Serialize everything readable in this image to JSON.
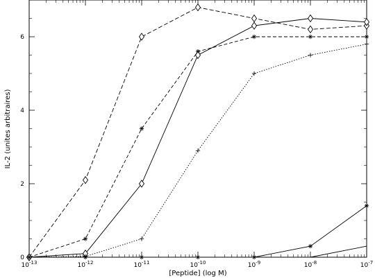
{
  "chart_data": {
    "type": "line",
    "title": "",
    "xlabel": "[Peptide] (log M)",
    "ylabel": "IL-2 (unites arbitraires)",
    "xscale": "log",
    "xlim": [
      1e-13,
      1e-07
    ],
    "ylim": [
      0,
      7
    ],
    "grid": false,
    "legend": "none",
    "x_ticks": [
      {
        "value": 1e-13,
        "base": "10",
        "exp": "-13"
      },
      {
        "value": 1e-12,
        "base": "10",
        "exp": "-12"
      },
      {
        "value": 1e-11,
        "base": "10",
        "exp": "-11"
      },
      {
        "value": 1e-10,
        "base": "10",
        "exp": "-10"
      },
      {
        "value": 1e-09,
        "base": "10",
        "exp": "-9"
      },
      {
        "value": 1e-08,
        "base": "10",
        "exp": "-8"
      },
      {
        "value": 1e-07,
        "base": "10",
        "exp": "-7"
      }
    ],
    "y_ticks": [
      {
        "value": 0,
        "label": "0"
      },
      {
        "value": 2,
        "label": "2"
      },
      {
        "value": 4,
        "label": "4"
      },
      {
        "value": 6,
        "label": "6"
      }
    ],
    "series": [
      {
        "line_style": "dashed-long",
        "marker": "diamond",
        "x": [
          1e-13,
          1e-12,
          1e-11,
          1e-10,
          1e-09,
          1e-08,
          1e-07
        ],
        "y": [
          0,
          2.1,
          6.0,
          6.8,
          6.5,
          6.2,
          6.3
        ]
      },
      {
        "line_style": "dashed",
        "marker": "asterisk",
        "x": [
          1e-13,
          1e-12,
          1e-11,
          1e-10,
          1e-09,
          1e-08,
          1e-07
        ],
        "y": [
          0,
          0.5,
          3.5,
          5.6,
          6.0,
          6.0,
          6.0
        ]
      },
      {
        "line_style": "solid",
        "marker": "diamond",
        "x": [
          1e-13,
          1e-12,
          1e-11,
          1e-10,
          1e-09,
          1e-08,
          1e-07
        ],
        "y": [
          0,
          0.1,
          2.0,
          5.5,
          6.3,
          6.5,
          6.4
        ]
      },
      {
        "line_style": "dotted",
        "marker": "plus",
        "x": [
          1e-13,
          1e-12,
          1e-11,
          1e-10,
          1e-09,
          1e-08,
          1e-07
        ],
        "y": [
          0,
          0.02,
          0.5,
          2.9,
          5.0,
          5.5,
          5.8
        ]
      },
      {
        "line_style": "solid",
        "marker": "asterisk",
        "x": [
          1e-13,
          1e-12,
          1e-11,
          1e-10,
          1e-09,
          1e-08,
          1e-07
        ],
        "y": [
          0,
          0,
          0,
          0,
          0,
          0.3,
          1.4
        ]
      },
      {
        "line_style": "solid",
        "marker": "none",
        "x": [
          1e-09,
          1e-08,
          1e-07
        ],
        "y": [
          0,
          0,
          0.3
        ]
      }
    ]
  }
}
